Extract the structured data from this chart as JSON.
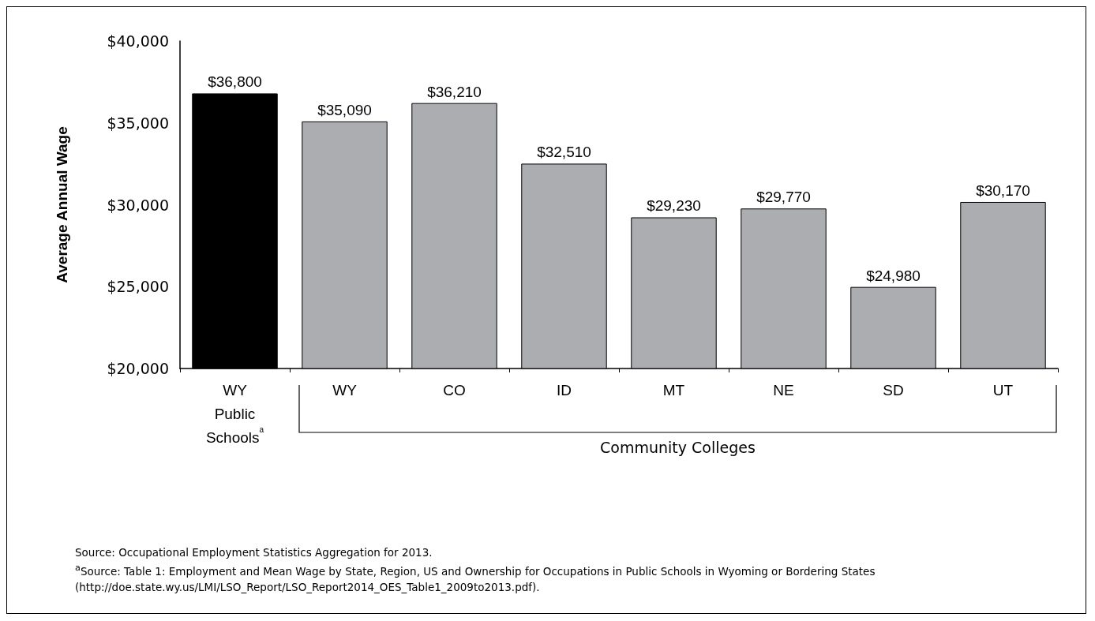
{
  "chart_data": {
    "type": "bar",
    "ylabel": "Average Annual Wage",
    "categories": [
      "WY\nPublic\nSchools$^{a}$",
      "WY",
      "CO",
      "ID",
      "MT",
      "NE",
      "SD",
      "UT"
    ],
    "values": [
      36800,
      35090,
      36210,
      32510,
      29230,
      29770,
      24980,
      30170
    ],
    "colors": [
      "#000000",
      "#abadb0",
      "#abadb0",
      "#abadb0",
      "#abadb0",
      "#abadb0",
      "#abadb0",
      "#abadb0"
    ],
    "value_labels": [
      "$36,800",
      "$35,090",
      "$36,210",
      "$32,510",
      "$29,230",
      "$29,770",
      "$24,980",
      "$30,170"
    ],
    "ylim": [
      20000,
      40000
    ],
    "yticks": [
      {
        "value": 20000,
        "label": "$20,000"
      },
      {
        "value": 25000,
        "label": "$25,000"
      },
      {
        "value": 30000,
        "label": "$30,000"
      },
      {
        "value": 35000,
        "label": "$35,000"
      },
      {
        "value": 40000,
        "label": "$40,000"
      }
    ],
    "annotations": [
      "Community Colleges",
      "Source: Occupational Employment Statistics Aggregation for 2013.",
      "$^{a}$Source: Table 1: Employment and Mean Wage by State, Region, US and Ownership for Occupations in Public Schools in Wyoming or Bordering States (http://doe.state.wy.us/LMI/LSO_Report/LSO_Report2014_OES_Table1_2009to2013.pdf)."
    ]
  }
}
